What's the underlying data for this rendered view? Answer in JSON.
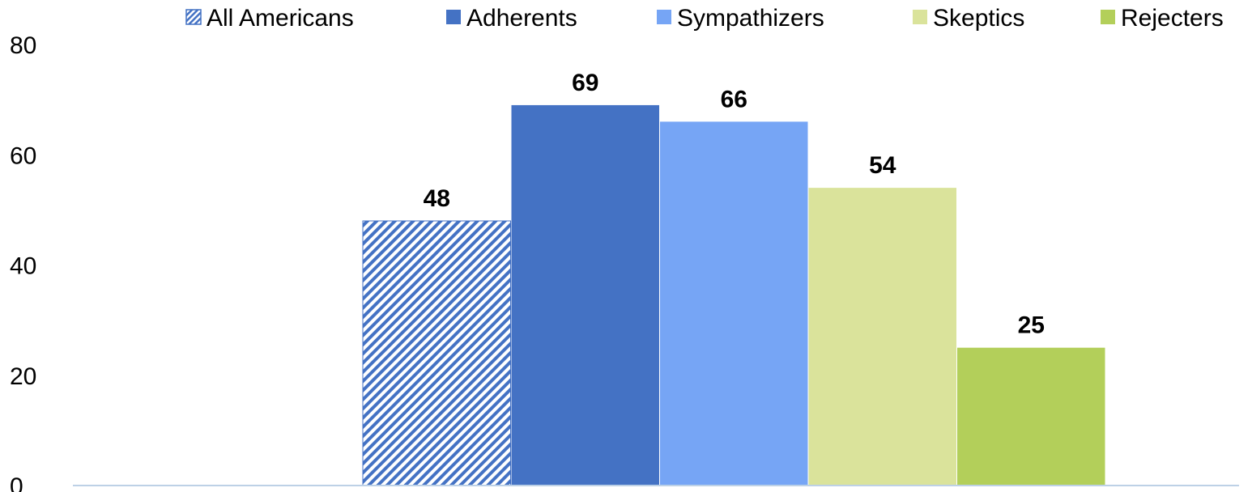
{
  "chart_data": {
    "type": "bar",
    "title": "",
    "xlabel": "",
    "ylabel": "",
    "ylim": [
      0,
      80
    ],
    "yticks": [
      0,
      20,
      40,
      60,
      80
    ],
    "grid": false,
    "legend_position": "top",
    "series": [
      {
        "name": "All Americans",
        "value": 48,
        "color": "#4472C4",
        "pattern": "diagonal-hatch"
      },
      {
        "name": "Adherents",
        "value": 69,
        "color": "#4472C4",
        "pattern": "solid"
      },
      {
        "name": "Sympathizers",
        "value": 66,
        "color": "#76A5F5",
        "pattern": "solid"
      },
      {
        "name": "Skeptics",
        "value": 54,
        "color": "#DAE39B",
        "pattern": "solid"
      },
      {
        "name": "Rejecters",
        "value": 25,
        "color": "#B3CF5A",
        "pattern": "solid"
      }
    ],
    "axis_color": "#BDD1E6"
  }
}
